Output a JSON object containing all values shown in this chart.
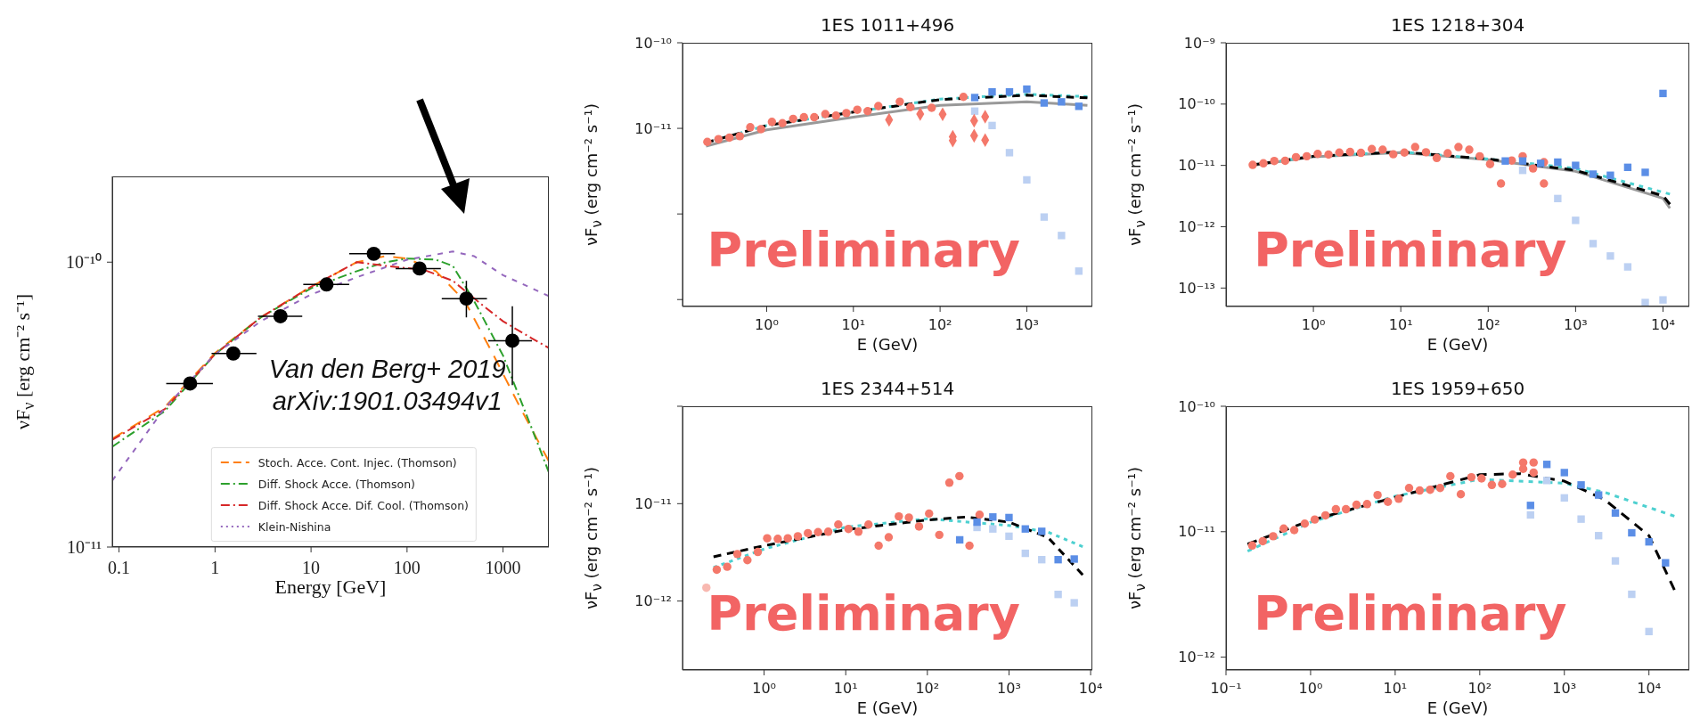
{
  "chart_data": [
    {
      "type": "scatter",
      "xlabel": "Energy [GeV]",
      "ylabel": "νF$_{ν}$ [erg cm⁻² s⁻¹]",
      "log": "xy",
      "xlim": [
        0.085,
        3000
      ],
      "xticks": [
        0.1,
        1,
        10,
        100,
        1000
      ],
      "ylim": [
        1e-11,
        2e-10
      ],
      "yticks": [
        {
          "value": 1e-11,
          "label": "10⁻¹¹"
        },
        {
          "value": 1e-10,
          "label": "10⁻¹⁰"
        }
      ],
      "legend": "bottom",
      "annotations": [
        "Van den Berg+ 2019",
        "arXiv:1901.03494v1"
      ],
      "series": [
        {
          "type": "line",
          "name": "Stoch. Acce. Cont. Injec. (Thomson)",
          "color": "#ff7f0e",
          "line_style": "dashed",
          "x": [
            0.085,
            0.3,
            1,
            3,
            10,
            30,
            60,
            100,
            200,
            400,
            800,
            1500,
            3000
          ],
          "values": [
            2.4e-11,
            3.1e-11,
            4.8e-11,
            6.4e-11,
            8.2e-11,
            1e-10,
            1.05e-10,
            1.03e-10,
            9.3e-11,
            7.3e-11,
            4.7e-11,
            3.1e-11,
            2e-11
          ]
        },
        {
          "type": "line",
          "name": "Diff. Shock Acce. (Thomson)",
          "color": "#2ca02c",
          "line_style": "dashdot",
          "x": [
            0.085,
            0.3,
            1,
            3,
            10,
            30,
            60,
            100,
            200,
            300,
            500,
            1000,
            2000,
            3000
          ],
          "values": [
            2.25e-11,
            3e-11,
            4.75e-11,
            6.4e-11,
            8.1e-11,
            9.3e-11,
            1e-10,
            1.03e-10,
            1.02e-10,
            9.7e-11,
            7.3e-11,
            4.7e-11,
            2.6e-11,
            1.83e-11
          ]
        },
        {
          "type": "line",
          "name": "Diff. Shock Acce. Dif. Cool. (Thomson)",
          "color": "#d62728",
          "line_style": "dashdot",
          "x": [
            0.085,
            0.3,
            1,
            3,
            10,
            30,
            60,
            150,
            300,
            600,
            1000,
            2000,
            3000
          ],
          "values": [
            2.38e-11,
            3.05e-11,
            4.75e-11,
            6.4e-11,
            8.2e-11,
            1e-10,
            9.7e-11,
            9.4e-11,
            8.6e-11,
            7.1e-11,
            6.2e-11,
            5.4e-11,
            5e-11
          ]
        },
        {
          "type": "line",
          "name": "Klein-Nishina",
          "color": "#9467bd",
          "line_style": "dotted",
          "x": [
            0.085,
            0.3,
            1,
            3,
            10,
            30,
            100,
            300,
            500,
            1000,
            2000,
            3000
          ],
          "values": [
            1.71e-11,
            3.08e-11,
            4.75e-11,
            6.2e-11,
            7.7e-11,
            8.85e-11,
            1.02e-10,
            1.09e-10,
            1.05e-10,
            9e-11,
            8.1e-11,
            7.6e-11
          ]
        },
        {
          "type": "scatter",
          "color": "#000000",
          "marker": "circle",
          "x": [
            0.55,
            1.55,
            4.8,
            14.5,
            45,
            135,
            415,
            1250
          ],
          "values": [
            3.75e-11,
            4.78e-11,
            6.46e-11,
            8.35e-11,
            1.07e-10,
            9.5e-11,
            7.45e-11,
            5.3e-11
          ],
          "xerrors": [
            [
              0.31,
              0.95
            ],
            [
              0.92,
              2.7
            ],
            [
              2.8,
              8.1
            ],
            [
              8.3,
              25
            ],
            [
              25,
              75
            ],
            [
              76,
              225
            ],
            [
              230,
              680
            ],
            [
              700,
              2000
            ]
          ],
          "errors": [
            null,
            null,
            null,
            null,
            null,
            null,
            [
              6.4e-11,
              8.6e-11
            ],
            [
              3.7e-11,
              7e-11
            ]
          ]
        }
      ]
    },
    {
      "type": "scatter",
      "title": "1ES 1011+496",
      "xlabel": "E (GeV)",
      "ylabel": "νF$_{ν}$ (erg cm⁻² s⁻¹)",
      "log": "xy",
      "xlim": [
        0.107,
        5700
      ],
      "xticks": [
        {
          "value": 1,
          "label": "10⁰"
        },
        {
          "value": 10,
          "label": "10¹"
        },
        {
          "value": 100,
          "label": "10²"
        },
        {
          "value": 1000,
          "label": "10³"
        }
      ],
      "ylim": [
        8.3e-14,
        1e-10
      ],
      "yticks": [
        {
          "value": 1e-13,
          "label": null
        },
        {
          "value": 1e-12,
          "label": null
        },
        {
          "value": 1e-11,
          "label": "10⁻¹¹"
        },
        {
          "value": 1e-10,
          "label": "10⁻¹⁰"
        }
      ],
      "annotations": [
        "Preliminary"
      ],
      "series": [
        {
          "type": "line",
          "color": "#999999",
          "line_style": "solid",
          "x": [
            0.2,
            1,
            10,
            100,
            1000,
            5000
          ],
          "values": [
            6.2e-12,
            9.6e-12,
            1.35e-11,
            1.86e-11,
            2.04e-11,
            1.86e-11
          ]
        },
        {
          "type": "line",
          "color": "#4dd0d0",
          "line_style": "dotted",
          "x": [
            0.2,
            1,
            10,
            100,
            1000,
            5000
          ],
          "values": [
            6.8e-12,
            1.08e-11,
            1.55e-11,
            2.2e-11,
            2.5e-11,
            2.35e-11
          ]
        },
        {
          "type": "line",
          "color": "#000000",
          "line_style": "dashed",
          "x": [
            0.2,
            1,
            10,
            100,
            1000,
            5000
          ],
          "values": [
            6.8e-12,
            1.08e-11,
            1.55e-11,
            2.17e-11,
            2.44e-11,
            2.27e-11
          ]
        },
        {
          "type": "scatter",
          "color": "#bcd0f2",
          "marker": "square",
          "x": [
            251,
            398,
            631,
            1000,
            1585,
            2512,
            3981
          ],
          "values": [
            1.59e-11,
            1.08e-11,
            5.2e-12,
            2.5e-12,
            9.2e-13,
            5.6e-13,
            2.15e-13
          ]
        },
        {
          "type": "scatter",
          "color": "#f4786a",
          "marker": "circle",
          "x": [
            0.207,
            0.278,
            0.372,
            0.491,
            0.647,
            0.86,
            1.15,
            1.52,
            2.02,
            2.69,
            3.54,
            4.75,
            6.3,
            8.3,
            11.1,
            14.6,
            19.4,
            34.3,
            45.5,
            80,
            186
          ],
          "values": [
            6.95e-12,
            7.48e-12,
            7.8e-12,
            8.1e-12,
            1.03e-11,
            9.8e-12,
            1.19e-11,
            1.15e-11,
            1.29e-11,
            1.35e-11,
            1.35e-11,
            1.47e-11,
            1.41e-11,
            1.51e-11,
            1.65e-11,
            1.59e-11,
            1.82e-11,
            2.05e-11,
            1.77e-11,
            1.74e-11,
            2.33e-11
          ]
        },
        {
          "type": "scatter",
          "color": "#f4786a",
          "marker": "diamond",
          "x": [
            25.8,
            59,
            107,
            140,
            140,
            247,
            247,
            331,
            331
          ],
          "values": [
            1.26e-11,
            1.47e-11,
            1.46e-11,
            7.96e-12,
            7.2e-12,
            1.23e-11,
            8.2e-12,
            1.37e-11,
            7.3e-12
          ]
        },
        {
          "type": "scatter",
          "color": "#5b8ee6",
          "marker": "square",
          "x": [
            251,
            398,
            631,
            1000,
            1585,
            2512,
            3981
          ],
          "values": [
            2.29e-11,
            2.67e-11,
            2.67e-11,
            2.87e-11,
            1.98e-11,
            2.04e-11,
            1.81e-11
          ]
        }
      ]
    },
    {
      "type": "scatter",
      "title": "1ES 1218+304",
      "xlabel": "E (GeV)",
      "ylabel": "νF$_{ν}$ (erg cm⁻² s⁻¹)",
      "log": "xy",
      "xlim": [
        0.1,
        20000
      ],
      "xticks": [
        {
          "value": 1,
          "label": "10⁰"
        },
        {
          "value": 10,
          "label": "10¹"
        },
        {
          "value": 100,
          "label": "10²"
        },
        {
          "value": 1000,
          "label": "10³"
        },
        {
          "value": 10000,
          "label": "10⁴"
        }
      ],
      "ylim": [
        5e-14,
        1e-09
      ],
      "yticks": [
        {
          "value": 1e-13,
          "label": "10⁻¹³"
        },
        {
          "value": 1e-12,
          "label": "10⁻¹²"
        },
        {
          "value": 1e-11,
          "label": "10⁻¹¹"
        },
        {
          "value": 1e-10,
          "label": "10⁻¹⁰"
        },
        {
          "value": 1e-09,
          "label": "10⁻⁹"
        }
      ],
      "annotations": [
        "Preliminary"
      ],
      "series": [
        {
          "type": "line",
          "color": "#999999",
          "line_style": "solid",
          "x": [
            0.2,
            1,
            10,
            100,
            1000,
            10000,
            12000
          ],
          "values": [
            1e-11,
            1.38e-11,
            1.62e-11,
            1.24e-11,
            8e-12,
            2.9e-12,
            2e-12
          ]
        },
        {
          "type": "line",
          "color": "#4dd0d0",
          "line_style": "dotted",
          "x": [
            0.2,
            1,
            10,
            100,
            1000,
            12000
          ],
          "values": [
            1.02e-11,
            1.41e-11,
            1.66e-11,
            1.27e-11,
            8.9e-12,
            3.4e-12
          ]
        },
        {
          "type": "line",
          "color": "#000000",
          "line_style": "dashed",
          "x": [
            0.2,
            1,
            10,
            100,
            1000,
            10000,
            12000
          ],
          "values": [
            1.02e-11,
            1.41e-11,
            1.66e-11,
            1.27e-11,
            8.3e-12,
            3.2e-12,
            2.33e-12
          ]
        },
        {
          "type": "scatter",
          "color": "#bcd0f2",
          "marker": "square",
          "x": [
            248,
            625,
            1000,
            1585,
            2500,
            3950,
            6260,
            10000
          ],
          "values": [
            8.3e-12,
            2.88e-12,
            1.27e-12,
            5.3e-13,
            3.33e-13,
            2.21e-13,
            5.8e-14,
            6.4e-14
          ]
        },
        {
          "type": "scatter",
          "color": "#f4786a",
          "marker": "circle",
          "x": [
            0.202,
            0.268,
            0.357,
            0.475,
            0.632,
            0.84,
            1.12,
            1.49,
            1.98,
            2.63,
            3.5,
            4.66,
            6.2,
            8.2,
            11,
            14.6,
            19.4,
            25.8,
            34.4,
            45.7,
            60.7,
            80,
            105,
            140,
            186,
            248,
            326,
            434,
            434
          ],
          "values": [
            1.02e-11,
            1.08e-11,
            1.18e-11,
            1.19e-11,
            1.36e-11,
            1.41e-11,
            1.54e-11,
            1.5e-11,
            1.62e-11,
            1.66e-11,
            1.6e-11,
            1.85e-11,
            1.8e-11,
            1.52e-11,
            1.62e-11,
            1.99e-11,
            1.64e-11,
            1.32e-11,
            1.58e-11,
            1.99e-11,
            1.8e-11,
            1.41e-11,
            1.05e-11,
            5.06e-12,
            1.2e-11,
            1.41e-11,
            8.9e-12,
            1.13e-11,
            5.06e-12
          ]
        },
        {
          "type": "scatter",
          "color": "#5b8ee6",
          "marker": "square",
          "x": [
            157,
            248,
            398,
            625,
            1000,
            1585,
            2500,
            3950,
            6260,
            10000
          ],
          "values": [
            1.18e-11,
            1.18e-11,
            1.08e-11,
            1.13e-11,
            1e-11,
            7.2e-12,
            6.9e-12,
            9.3e-12,
            7.7e-12,
            1.49e-10
          ]
        }
      ]
    },
    {
      "type": "scatter",
      "title": "1ES 2344+514",
      "xlabel": "E (GeV)",
      "ylabel": "νF$_{ν}$ (erg cm⁻² s⁻¹)",
      "log": "xy",
      "xlim": [
        0.1,
        10500
      ],
      "xticks": [
        {
          "value": 1,
          "label": "10⁰"
        },
        {
          "value": 10,
          "label": "10¹"
        },
        {
          "value": 100,
          "label": "10²"
        },
        {
          "value": 1000,
          "label": "10³"
        },
        {
          "value": 10000,
          "label": "10⁴"
        }
      ],
      "ylim": [
        1.96e-13,
        1e-10
      ],
      "yticks": [
        {
          "value": 1e-12,
          "label": "10⁻¹²"
        },
        {
          "value": 1e-11,
          "label": "10⁻¹¹"
        },
        {
          "value": 1e-10,
          "label": null
        }
      ],
      "annotations": [
        "Preliminary"
      ],
      "series": [
        {
          "type": "line",
          "color": "#4dd0d0",
          "line_style": "dotted",
          "x": [
            0.24,
            1,
            10,
            100,
            1000,
            3000,
            8000
          ],
          "values": [
            2.21e-12,
            3.42e-12,
            5.74e-12,
            7e-12,
            5.97e-12,
            5.1e-12,
            3.62e-12
          ]
        },
        {
          "type": "line",
          "color": "#000000",
          "line_style": "dashed",
          "x": [
            0.24,
            1,
            10,
            100,
            300,
            1000,
            3000,
            8000
          ],
          "values": [
            2.85e-12,
            3.7e-12,
            5.4e-12,
            6.8e-12,
            7.3e-12,
            6.46e-12,
            4.5e-12,
            1.86e-12
          ]
        },
        {
          "type": "scatter",
          "color": "#bcd0f2",
          "marker": "square",
          "x": [
            406,
            634,
            1000,
            1585,
            2520,
            4000,
            6300
          ],
          "values": [
            5.7e-12,
            5.5e-12,
            4.63e-12,
            3.09e-12,
            2.66e-12,
            1.17e-12,
            9.6e-13
          ]
        },
        {
          "type": "scatter",
          "color": "#f8b8b0",
          "marker": "circle",
          "x": [
            0.196
          ],
          "values": [
            1.37e-12
          ]
        },
        {
          "type": "scatter",
          "color": "#f4786a",
          "marker": "circle",
          "x": [
            0.263,
            0.353,
            0.47,
            0.624,
            0.837,
            1.09,
            1.47,
            1.95,
            2.59,
            3.44,
            4.58,
            6.1,
            8.1,
            10.8,
            14.3,
            19,
            25.3,
            33.6,
            44.7,
            59.4,
            79,
            105,
            140,
            186,
            247,
            328,
            436
          ],
          "values": [
            2.1e-12,
            2.25e-12,
            3.04e-12,
            2.63e-12,
            3.19e-12,
            4.41e-12,
            4.35e-12,
            4.41e-12,
            4.63e-12,
            4.98e-12,
            5.1e-12,
            5.15e-12,
            6.1e-12,
            5.5e-12,
            5.15e-12,
            6.1e-12,
            3.7e-12,
            4.52e-12,
            7.4e-12,
            7.2e-12,
            5.83e-12,
            7.9e-12,
            4.78e-12,
            1.64e-11,
            1.92e-11,
            3.7e-12,
            7.7e-12
          ]
        },
        {
          "type": "scatter",
          "color": "#5b8ee6",
          "marker": "square",
          "x": [
            249,
            406,
            634,
            1000,
            1585,
            2520,
            4000,
            6300
          ],
          "values": [
            4.25e-12,
            6.46e-12,
            7.3e-12,
            7.2e-12,
            5.5e-12,
            5.2e-12,
            2.66e-12,
            2.7e-12
          ]
        }
      ]
    },
    {
      "type": "scatter",
      "title": "1ES 1959+650",
      "xlabel": "E (GeV)",
      "ylabel": "νF$_{ν}$ (erg cm⁻² s⁻¹)",
      "log": "xy",
      "xlim": [
        0.1,
        30000
      ],
      "xticks": [
        {
          "value": 0.1,
          "label": "10⁻¹"
        },
        {
          "value": 1,
          "label": "10⁰"
        },
        {
          "value": 10,
          "label": "10¹"
        },
        {
          "value": 100,
          "label": "10²"
        },
        {
          "value": 1000,
          "label": "10³"
        },
        {
          "value": 10000,
          "label": "10⁴"
        }
      ],
      "ylim": [
        7.9e-13,
        1e-10
      ],
      "yticks": [
        {
          "value": 1e-12,
          "label": "10⁻¹²"
        },
        {
          "value": 1e-11,
          "label": "10⁻¹¹"
        },
        {
          "value": 1e-10,
          "label": "10⁻¹⁰"
        }
      ],
      "annotations": [
        "Preliminary"
      ],
      "series": [
        {
          "type": "line",
          "color": "#4dd0d0",
          "line_style": "dotted",
          "x": [
            0.18,
            1,
            10,
            100,
            1000,
            3000,
            20000
          ],
          "values": [
            7e-12,
            1.19e-11,
            1.92e-11,
            2.62e-11,
            2.44e-11,
            2.06e-11,
            1.33e-11
          ]
        },
        {
          "type": "line",
          "color": "#000000",
          "line_style": "dashed",
          "x": [
            0.18,
            1,
            10,
            100,
            300,
            1000,
            3000,
            10000,
            20000
          ],
          "values": [
            7.96e-12,
            1.23e-11,
            1.88e-11,
            2.85e-11,
            2.9e-11,
            2.53e-11,
            1.8e-11,
            9.3e-12,
            3.44e-12
          ]
        },
        {
          "type": "scatter",
          "color": "#bcd0f2",
          "marker": "square",
          "x": [
            398,
            621,
            1000,
            1578,
            2540,
            4010,
            6260,
            10000
          ],
          "values": [
            1.36e-11,
            2.56e-11,
            1.86e-11,
            1.26e-11,
            9.3e-12,
            5.85e-12,
            3.17e-12,
            1.6e-12
          ]
        },
        {
          "type": "scatter",
          "color": "#f4786a",
          "marker": "circle",
          "x": [
            0.204,
            0.272,
            0.361,
            0.481,
            0.641,
            0.853,
            1.12,
            1.5,
            1.99,
            2.62,
            3.49,
            4.65,
            6.19,
            8.2,
            11,
            14.6,
            19.5,
            25.9,
            34,
            44.9,
            59.7,
            79.6,
            105,
            139,
            184,
            245,
            326,
            326,
            433,
            433
          ],
          "values": [
            7.76e-12,
            8.4e-12,
            9.2e-12,
            1.06e-11,
            1.03e-11,
            1.16e-11,
            1.25e-11,
            1.35e-11,
            1.51e-11,
            1.51e-11,
            1.64e-11,
            1.66e-11,
            1.96e-11,
            1.73e-11,
            1.83e-11,
            2.23e-11,
            2.13e-11,
            2.16e-11,
            2.23e-11,
            2.77e-11,
            1.99e-11,
            2.72e-11,
            2.66e-11,
            2.36e-11,
            2.4e-11,
            2.85e-11,
            3.56e-11,
            3.17e-11,
            3.56e-11,
            2.96e-11
          ]
        },
        {
          "type": "scatter",
          "color": "#5b8ee6",
          "marker": "square",
          "x": [
            398,
            621,
            1000,
            1578,
            2540,
            4010,
            6260,
            10000,
            15700
          ],
          "values": [
            1.62e-11,
            3.44e-11,
            2.96e-11,
            2.36e-11,
            1.96e-11,
            1.41e-11,
            9.8e-12,
            8.3e-12,
            5.65e-12
          ]
        }
      ]
    }
  ]
}
